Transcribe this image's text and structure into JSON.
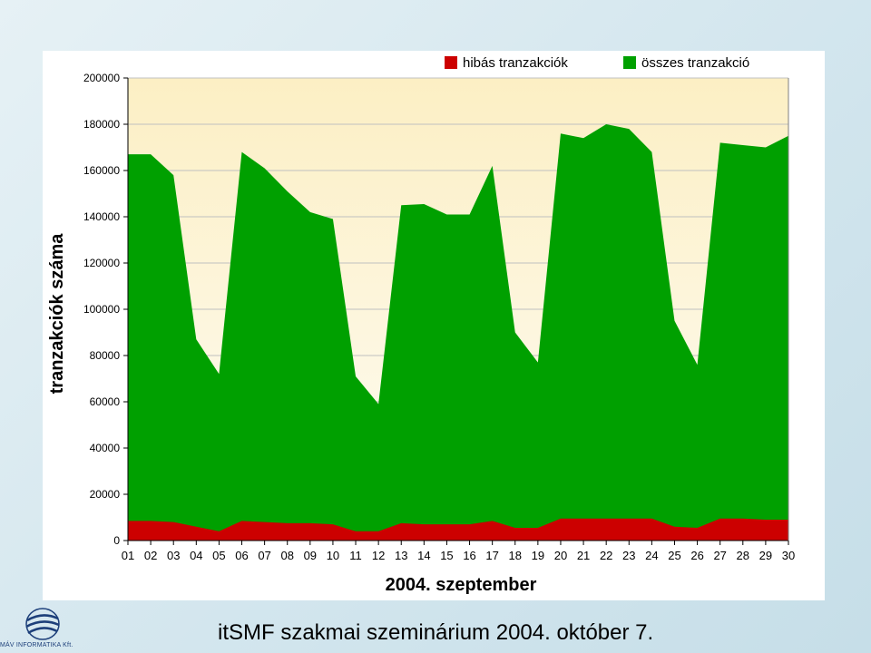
{
  "footer": {
    "text": "itSMF szakmai szeminárium 2004. október 7."
  },
  "logo": {
    "text": "MÁV INFORMATIKA Kft.",
    "icon": "globe-icon"
  },
  "colors": {
    "failed": "#cc0000",
    "total": "#00a000",
    "plot_bg_top": "#fcefc4",
    "plot_bg_bottom": "#fefcf4"
  },
  "chart_data": {
    "type": "area",
    "title": "",
    "xlabel": "2004. szeptember",
    "ylabel": "tranzakciók száma",
    "legend_position": "top-right",
    "grid": true,
    "ylim": [
      0,
      200000
    ],
    "yticks": [
      "0",
      "20000",
      "40000",
      "60000",
      "80000",
      "100000",
      "120000",
      "140000",
      "160000",
      "180000",
      "200000"
    ],
    "categories": [
      "01",
      "02",
      "03",
      "04",
      "05",
      "06",
      "07",
      "08",
      "09",
      "10",
      "11",
      "12",
      "13",
      "14",
      "15",
      "16",
      "17",
      "18",
      "19",
      "20",
      "21",
      "22",
      "23",
      "24",
      "25",
      "26",
      "27",
      "28",
      "29",
      "30"
    ],
    "series": [
      {
        "name": "hibás tranzakciók",
        "color": "#cc0000",
        "values": [
          8500,
          8500,
          8000,
          6000,
          4000,
          8500,
          8000,
          7500,
          7500,
          7000,
          4000,
          4000,
          7500,
          7000,
          7000,
          7000,
          8500,
          5500,
          5500,
          9500,
          9500,
          9500,
          9500,
          9500,
          6000,
          5500,
          9500,
          9500,
          9000,
          9000
        ]
      },
      {
        "name": "összes tranzakció",
        "color": "#00a000",
        "values": [
          167000,
          167000,
          158000,
          87000,
          72000,
          168000,
          161000,
          151000,
          142000,
          139000,
          71000,
          59000,
          145000,
          145500,
          141000,
          141000,
          162000,
          90000,
          77000,
          176000,
          174000,
          180000,
          178000,
          168000,
          95000,
          76000,
          172000,
          171000,
          170000,
          175000
        ]
      }
    ]
  }
}
